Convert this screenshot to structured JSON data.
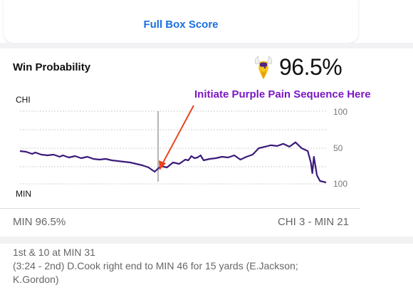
{
  "header": {
    "full_box_score": "Full Box Score"
  },
  "win_probability": {
    "title": "Win Probability",
    "team_icon": "vikings-logo",
    "percent": "96.5%"
  },
  "annotation": {
    "text": "Initiate Purple Pain Sequence Here",
    "color": "#7b17c4",
    "arrow_color": "#e8451e"
  },
  "chart_data": {
    "type": "line",
    "title": "",
    "top_team_label": "CHI",
    "bottom_team_label": "MIN",
    "y_tick_labels": [
      "100",
      "50",
      "100"
    ],
    "line_color": "#3b1a7a",
    "grid": true,
    "note": "",
    "x": [
      0,
      2,
      4,
      5,
      7,
      9,
      11,
      13,
      14,
      16,
      18,
      20,
      22,
      24,
      26,
      28,
      30,
      32,
      34,
      36,
      38,
      40,
      42,
      44,
      46,
      48,
      50,
      52,
      54,
      55,
      56,
      57,
      58,
      59,
      60,
      62,
      64,
      66,
      68,
      70,
      72,
      74,
      76,
      78,
      80,
      82,
      84,
      86,
      88,
      90,
      92,
      94,
      95,
      95.5,
      96,
      97,
      98,
      100
    ],
    "y": [
      -4,
      -5,
      -8,
      -6,
      -9,
      -10,
      -9,
      -12,
      -10,
      -13,
      -11,
      -14,
      -12,
      -15,
      -16,
      -15,
      -17,
      -18,
      -19,
      -20,
      -22,
      -24,
      -27,
      -33,
      -25,
      -27,
      -20,
      -22,
      -16,
      -17,
      -11,
      -14,
      -13,
      -10,
      -17,
      -15,
      -14,
      -12,
      -13,
      -10,
      -16,
      -12,
      -9,
      0,
      2,
      4,
      3,
      6,
      2,
      8,
      0,
      -4,
      -20,
      -35,
      -12,
      -38,
      -46,
      -48
    ]
  },
  "footer": {
    "score_left": "MIN 96.5%",
    "score_right": "CHI 3  - MIN 21"
  },
  "play": {
    "line1": "1st & 10 at MIN 31",
    "line2": "(3:24 - 2nd) D.Cook right end to MIN 46 for 15 yards (E.Jackson;",
    "line3": "K.Gordon)"
  }
}
